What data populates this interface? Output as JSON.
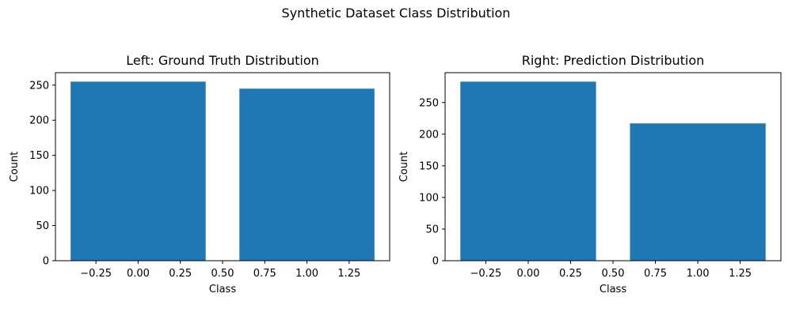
{
  "figure": {
    "suptitle": "Synthetic Dataset Class Distribution"
  },
  "chart_data": [
    {
      "type": "bar",
      "title": "Left: Ground Truth Distribution",
      "xlabel": "Class",
      "ylabel": "Count",
      "x": [
        0,
        1
      ],
      "values": [
        255,
        245
      ],
      "bar_width": 0.8,
      "xlim": [
        -0.49,
        1.49
      ],
      "ylim": [
        0,
        267.75
      ],
      "xticks": [
        -0.25,
        0.0,
        0.25,
        0.5,
        0.75,
        1.0,
        1.25
      ],
      "xtick_labels": [
        "−0.25",
        "0.00",
        "0.25",
        "0.50",
        "0.75",
        "1.00",
        "1.25"
      ],
      "yticks": [
        0,
        50,
        100,
        150,
        200,
        250
      ],
      "ytick_labels": [
        "0",
        "50",
        "100",
        "150",
        "200",
        "250"
      ],
      "color": "#1f77b4",
      "grid": false
    },
    {
      "type": "bar",
      "title": "Right: Prediction Distribution",
      "xlabel": "Class",
      "ylabel": "Count",
      "x": [
        0,
        1
      ],
      "values": [
        283,
        217
      ],
      "bar_width": 0.8,
      "xlim": [
        -0.49,
        1.49
      ],
      "ylim": [
        0,
        297.15
      ],
      "xticks": [
        -0.25,
        0.0,
        0.25,
        0.5,
        0.75,
        1.0,
        1.25
      ],
      "xtick_labels": [
        "−0.25",
        "0.00",
        "0.25",
        "0.50",
        "0.75",
        "1.00",
        "1.25"
      ],
      "yticks": [
        0,
        50,
        100,
        150,
        200,
        250
      ],
      "ytick_labels": [
        "0",
        "50",
        "100",
        "150",
        "200",
        "250"
      ],
      "color": "#1f77b4",
      "grid": false
    }
  ]
}
